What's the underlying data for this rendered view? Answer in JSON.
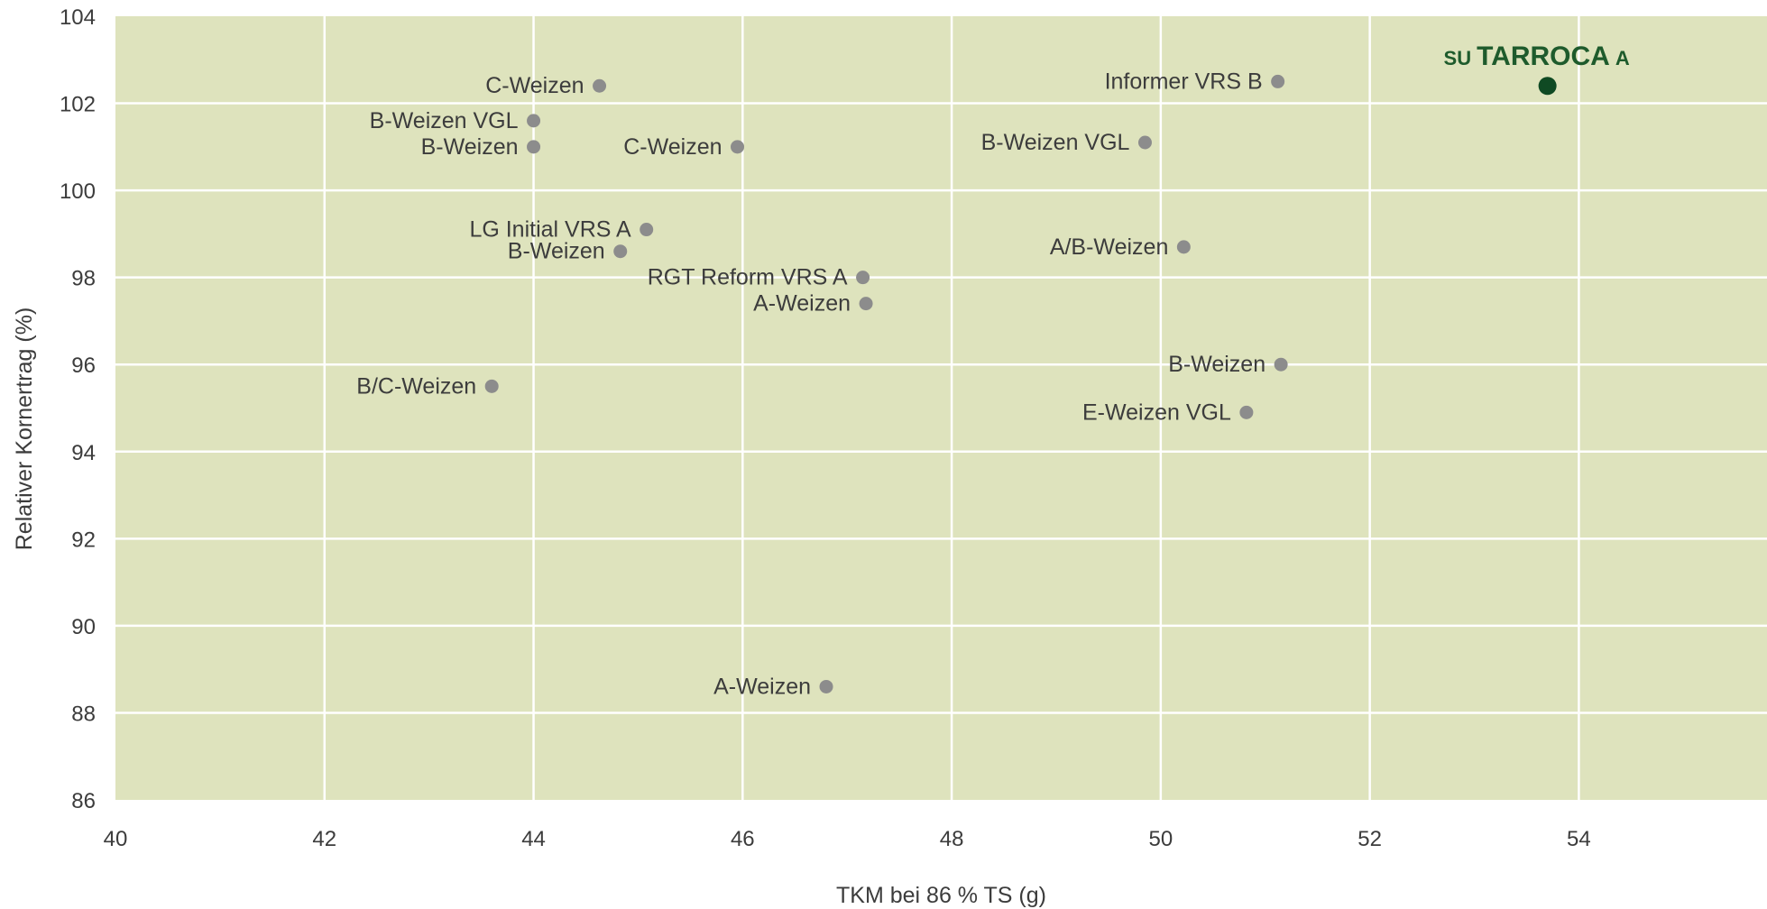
{
  "chart_data": {
    "type": "scatter",
    "title": "",
    "xlabel": "TKM bei 86 % TS (g)",
    "ylabel": "Relativer Kornertrag (%)",
    "xlim": [
      40,
      55.8
    ],
    "ylim": [
      86,
      104
    ],
    "x_ticks": [
      40,
      42,
      44,
      46,
      48,
      50,
      52,
      54
    ],
    "y_ticks": [
      86,
      88,
      90,
      92,
      94,
      96,
      98,
      100,
      102,
      104
    ],
    "grid": true,
    "colors": {
      "plot_background": "#dee3bd",
      "grid": "#ffffff",
      "point": "#8c8c8c",
      "highlight": "#0f4a23"
    },
    "points": [
      {
        "label": "C-Weizen",
        "x": 44.63,
        "y": 102.4
      },
      {
        "label": "B-Weizen VGL",
        "x": 44.0,
        "y": 101.6
      },
      {
        "label": "B-Weizen",
        "x": 44.0,
        "y": 101.0
      },
      {
        "label": "C-Weizen",
        "x": 45.95,
        "y": 101.0
      },
      {
        "label": "LG Initial VRS A",
        "x": 45.08,
        "y": 99.1
      },
      {
        "label": "B-Weizen",
        "x": 44.83,
        "y": 98.6
      },
      {
        "label": "RGT Reform VRS A",
        "x": 47.15,
        "y": 98.0
      },
      {
        "label": "A-Weizen",
        "x": 47.18,
        "y": 97.4
      },
      {
        "label": "B/C-Weizen",
        "x": 43.6,
        "y": 95.5
      },
      {
        "label": "A-Weizen",
        "x": 46.8,
        "y": 88.6
      },
      {
        "label": "Informer VRS B",
        "x": 51.12,
        "y": 102.5
      },
      {
        "label": "B-Weizen VGL",
        "x": 49.85,
        "y": 101.1
      },
      {
        "label": "A/B-Weizen",
        "x": 50.22,
        "y": 98.7
      },
      {
        "label": "B-Weizen",
        "x": 51.15,
        "y": 96.0
      },
      {
        "label": "E-Weizen VGL",
        "x": 50.82,
        "y": 94.9
      }
    ],
    "highlight": {
      "label_prefix": "SU",
      "label_name": "TARROCA",
      "label_suffix": "A",
      "x": 53.7,
      "y": 102.4
    }
  }
}
